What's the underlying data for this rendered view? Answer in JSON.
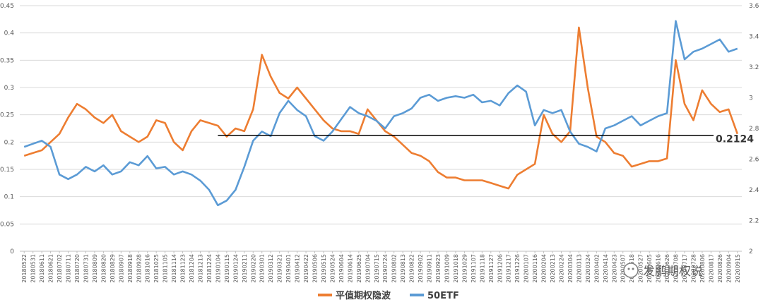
{
  "chart_data": {
    "type": "line",
    "left_axis": {
      "min": 0,
      "max": 0.45,
      "ticks": [
        "0",
        "0.05",
        "0.1",
        "0.15",
        "0.2",
        "0.25",
        "0.3",
        "0.35",
        "0.4",
        "0.45"
      ]
    },
    "right_axis": {
      "min": 2,
      "max": 3.6,
      "ticks": [
        "2",
        "2.2",
        "2.4",
        "2.6",
        "2.8",
        "3",
        "3.2",
        "3.4",
        "3.6"
      ]
    },
    "grid": true,
    "legend_position": "bottom",
    "x_tick_labels": [
      "20180522",
      "20180531",
      "20180611",
      "20180621",
      "20180702",
      "20180711",
      "20180720",
      "20180731",
      "20180809",
      "20180820",
      "20180829",
      "20180907",
      "20180918",
      "20180928",
      "20181016",
      "20181025",
      "20181105",
      "20181114",
      "20181123",
      "20181204",
      "20181213",
      "20181224",
      "20190104",
      "20190115",
      "20190124",
      "20190211",
      "20190220",
      "20190301",
      "20190312",
      "20190321",
      "20190401",
      "20190412",
      "20190422",
      "20190506",
      "20190515",
      "20190524",
      "20190604",
      "20190614",
      "20190625",
      "20190704",
      "20190715",
      "20190724",
      "20190802",
      "20190813",
      "20190822",
      "20190902",
      "20190911",
      "20190923",
      "20191009",
      "20191018",
      "20191029",
      "20191107",
      "20191118",
      "20191127",
      "20191206",
      "20191217",
      "20191226",
      "20200107",
      "20200116",
      "20200204",
      "20200213",
      "20200224",
      "20200304",
      "20200313",
      "20200324",
      "20200402",
      "20200414",
      "20200423",
      "20200507",
      "20200518",
      "20200527",
      "20200605",
      "20200616",
      "20200626",
      "20200708",
      "20200717",
      "20200728",
      "20200806",
      "20200817",
      "20200826",
      "20200904",
      "20200915"
    ],
    "series": [
      {
        "name": "平值期权隐波",
        "axis": "left",
        "color": "#ED7D31",
        "points": [
          [
            0,
            0.175
          ],
          [
            1,
            0.18
          ],
          [
            2,
            0.185
          ],
          [
            3,
            0.2
          ],
          [
            4,
            0.215
          ],
          [
            5,
            0.245
          ],
          [
            6,
            0.27
          ],
          [
            7,
            0.26
          ],
          [
            8,
            0.245
          ],
          [
            9,
            0.235
          ],
          [
            10,
            0.25
          ],
          [
            11,
            0.22
          ],
          [
            12,
            0.21
          ],
          [
            13,
            0.2
          ],
          [
            14,
            0.21
          ],
          [
            15,
            0.24
          ],
          [
            16,
            0.235
          ],
          [
            17,
            0.2
          ],
          [
            18,
            0.185
          ],
          [
            19,
            0.22
          ],
          [
            20,
            0.24
          ],
          [
            21,
            0.235
          ],
          [
            22,
            0.23
          ],
          [
            23,
            0.21
          ],
          [
            24,
            0.225
          ],
          [
            25,
            0.22
          ],
          [
            26,
            0.26
          ],
          [
            27,
            0.36
          ],
          [
            28,
            0.32
          ],
          [
            29,
            0.29
          ],
          [
            30,
            0.28
          ],
          [
            31,
            0.3
          ],
          [
            32,
            0.28
          ],
          [
            33,
            0.26
          ],
          [
            34,
            0.24
          ],
          [
            35,
            0.225
          ],
          [
            36,
            0.22
          ],
          [
            37,
            0.22
          ],
          [
            38,
            0.215
          ],
          [
            39,
            0.26
          ],
          [
            40,
            0.24
          ],
          [
            41,
            0.22
          ],
          [
            42,
            0.21
          ],
          [
            43,
            0.195
          ],
          [
            44,
            0.18
          ],
          [
            45,
            0.175
          ],
          [
            46,
            0.165
          ],
          [
            47,
            0.145
          ],
          [
            48,
            0.135
          ],
          [
            49,
            0.135
          ],
          [
            50,
            0.13
          ],
          [
            51,
            0.13
          ],
          [
            52,
            0.13
          ],
          [
            53,
            0.125
          ],
          [
            54,
            0.12
          ],
          [
            55,
            0.115
          ],
          [
            56,
            0.14
          ],
          [
            57,
            0.15
          ],
          [
            58,
            0.16
          ],
          [
            59,
            0.25
          ],
          [
            60,
            0.215
          ],
          [
            61,
            0.2
          ],
          [
            62,
            0.22
          ],
          [
            63,
            0.41
          ],
          [
            64,
            0.3
          ],
          [
            65,
            0.21
          ],
          [
            66,
            0.2
          ],
          [
            67,
            0.18
          ],
          [
            68,
            0.175
          ],
          [
            69,
            0.155
          ],
          [
            70,
            0.16
          ],
          [
            71,
            0.165
          ],
          [
            72,
            0.165
          ],
          [
            73,
            0.17
          ],
          [
            74,
            0.35
          ],
          [
            75,
            0.27
          ],
          [
            76,
            0.24
          ],
          [
            77,
            0.295
          ],
          [
            78,
            0.27
          ],
          [
            79,
            0.255
          ],
          [
            80,
            0.26
          ],
          [
            81,
            0.215
          ]
        ]
      },
      {
        "name": "50ETF",
        "axis": "right",
        "color": "#5B9BD5",
        "points": [
          [
            0,
            2.68
          ],
          [
            1,
            2.7
          ],
          [
            2,
            2.72
          ],
          [
            3,
            2.68
          ],
          [
            4,
            2.5
          ],
          [
            5,
            2.47
          ],
          [
            6,
            2.5
          ],
          [
            7,
            2.55
          ],
          [
            8,
            2.52
          ],
          [
            9,
            2.56
          ],
          [
            10,
            2.5
          ],
          [
            11,
            2.52
          ],
          [
            12,
            2.58
          ],
          [
            13,
            2.56
          ],
          [
            14,
            2.62
          ],
          [
            15,
            2.54
          ],
          [
            16,
            2.55
          ],
          [
            17,
            2.5
          ],
          [
            18,
            2.52
          ],
          [
            19,
            2.5
          ],
          [
            20,
            2.46
          ],
          [
            21,
            2.4
          ],
          [
            22,
            2.3
          ],
          [
            23,
            2.33
          ],
          [
            24,
            2.4
          ],
          [
            25,
            2.55
          ],
          [
            26,
            2.72
          ],
          [
            27,
            2.78
          ],
          [
            28,
            2.75
          ],
          [
            29,
            2.9
          ],
          [
            30,
            2.98
          ],
          [
            31,
            2.92
          ],
          [
            32,
            2.88
          ],
          [
            33,
            2.75
          ],
          [
            34,
            2.72
          ],
          [
            35,
            2.78
          ],
          [
            36,
            2.86
          ],
          [
            37,
            2.94
          ],
          [
            38,
            2.9
          ],
          [
            39,
            2.88
          ],
          [
            40,
            2.85
          ],
          [
            41,
            2.8
          ],
          [
            42,
            2.88
          ],
          [
            43,
            2.9
          ],
          [
            44,
            2.93
          ],
          [
            45,
            3.0
          ],
          [
            46,
            3.02
          ],
          [
            47,
            2.98
          ],
          [
            48,
            3.0
          ],
          [
            49,
            3.01
          ],
          [
            50,
            3.0
          ],
          [
            51,
            3.02
          ],
          [
            52,
            2.97
          ],
          [
            53,
            2.98
          ],
          [
            54,
            2.95
          ],
          [
            55,
            3.03
          ],
          [
            56,
            3.08
          ],
          [
            57,
            3.04
          ],
          [
            58,
            2.82
          ],
          [
            59,
            2.92
          ],
          [
            60,
            2.9
          ],
          [
            61,
            2.92
          ],
          [
            62,
            2.78
          ],
          [
            63,
            2.7
          ],
          [
            64,
            2.68
          ],
          [
            65,
            2.65
          ],
          [
            66,
            2.8
          ],
          [
            67,
            2.82
          ],
          [
            68,
            2.85
          ],
          [
            69,
            2.88
          ],
          [
            70,
            2.82
          ],
          [
            71,
            2.85
          ],
          [
            72,
            2.88
          ],
          [
            73,
            2.9
          ],
          [
            74,
            3.5
          ],
          [
            75,
            3.25
          ],
          [
            76,
            3.3
          ],
          [
            77,
            3.32
          ],
          [
            78,
            3.35
          ],
          [
            79,
            3.38
          ],
          [
            80,
            3.3
          ],
          [
            81,
            3.32
          ]
        ]
      }
    ],
    "annotations": [
      {
        "type": "hline",
        "axis": "left",
        "value": 0.2124,
        "label": "0.2124",
        "color": "#000000"
      }
    ]
  },
  "watermark": {
    "icon": "wechat-icon",
    "text": "发鹏期权说"
  }
}
